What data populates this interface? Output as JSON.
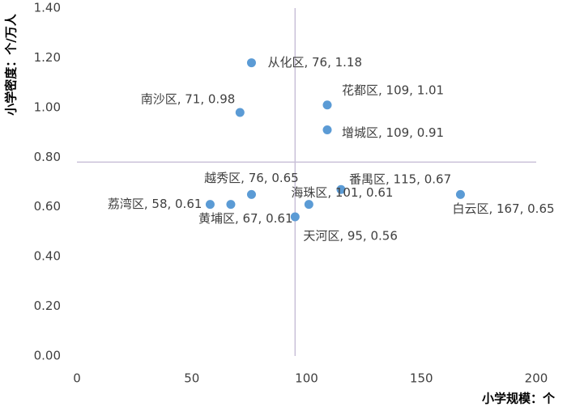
{
  "chart_data": {
    "type": "scatter",
    "x_label": "小学规模：个",
    "y_label": "小学密度：个/万人",
    "names": [
      "从化区",
      "南沙区",
      "花都区",
      "增城区",
      "越秀区",
      "番禺区",
      "海珠区",
      "荔湾区",
      "黄埔区",
      "白云区",
      "天河区"
    ],
    "x": [
      76,
      71,
      109,
      109,
      76,
      115,
      101,
      58,
      67,
      167,
      95
    ],
    "values": [
      1.18,
      0.98,
      1.01,
      0.91,
      0.65,
      0.67,
      0.61,
      0.61,
      0.61,
      0.65,
      0.56
    ],
    "value_labels": [
      "从化区, 76, 1.18",
      "南沙区, 71, 0.98",
      "花都区, 109, 1.01",
      "增城区, 109, 0.91",
      "越秀区, 76, 0.65",
      "番禺区, 115, 0.67",
      "海珠区, 101, 0.61",
      "荔湾区, 58, 0.61",
      "黄埔区, 67, 0.61",
      "白云区, 167, 0.65",
      "天河区, 95, 0.56"
    ],
    "color": "#5b9bd5",
    "xlim": [
      0,
      200
    ],
    "xticks": [
      0,
      50,
      100,
      150,
      200
    ],
    "ylim": [
      0,
      1.4
    ],
    "yticks": [
      {
        "value": 0,
        "label": "0.00"
      },
      {
        "value": 0.2,
        "label": "0.20"
      },
      {
        "value": 0.4,
        "label": "0.40"
      },
      {
        "value": 0.6,
        "label": "0.60"
      },
      {
        "value": 0.8,
        "label": "0.80"
      },
      {
        "value": 1.0,
        "label": "1.00"
      },
      {
        "value": 1.2,
        "label": "1.20"
      },
      {
        "value": 1.4,
        "label": "1.40"
      }
    ],
    "reference_lines": {
      "x": 95,
      "y": 0.78,
      "color": "#c9c0d8"
    }
  }
}
